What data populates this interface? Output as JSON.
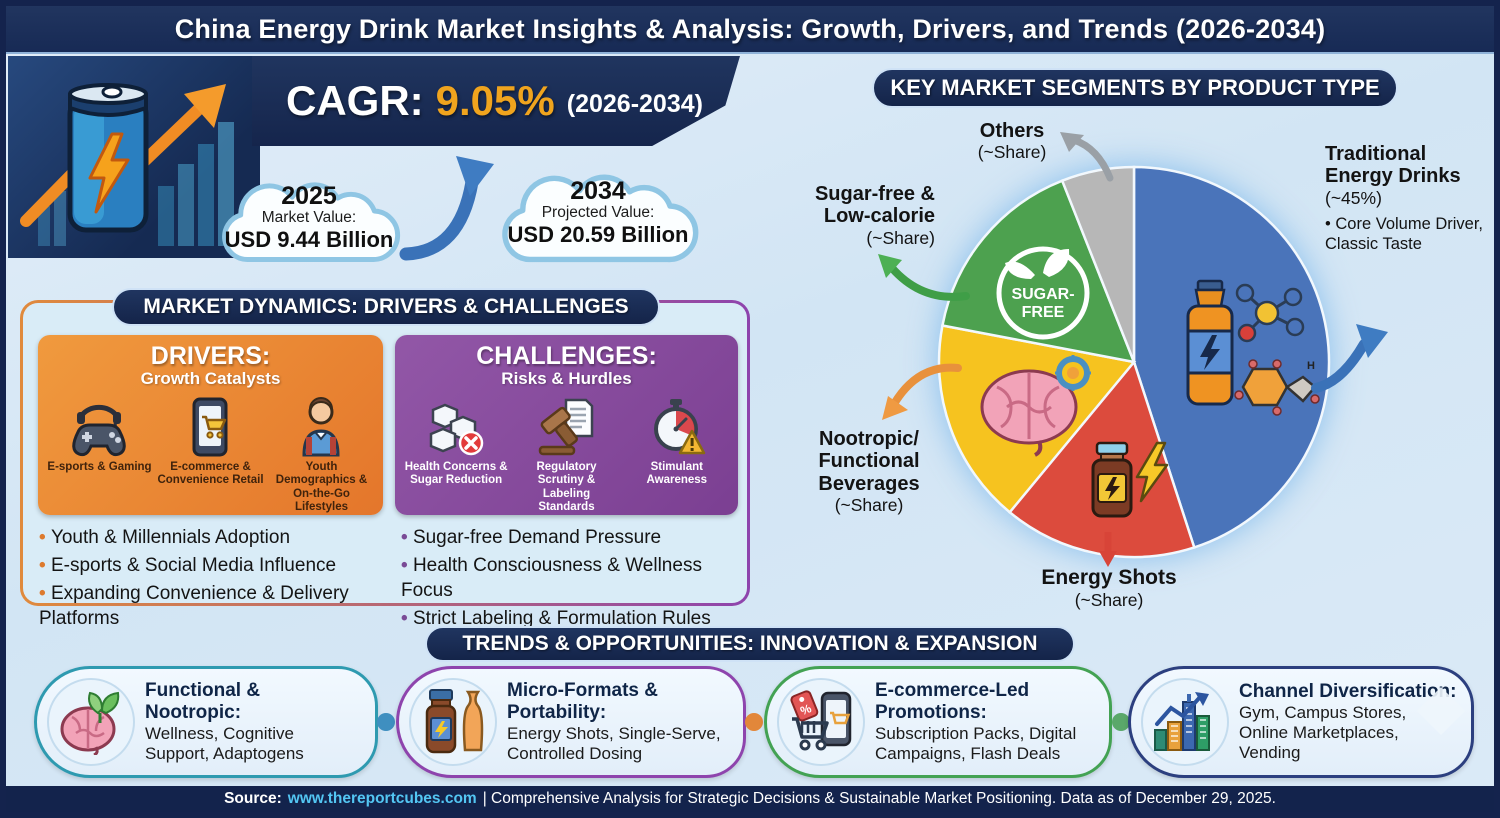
{
  "title": "China Energy Drink Market Insights & Analysis: Growth, Drivers, and Trends (2026-2034)",
  "hero": {
    "cagr_label": "CAGR:",
    "cagr_value": "9.05%",
    "cagr_period": "(2026-2034)",
    "clouds": [
      {
        "year": "2025",
        "label": "Market Value:",
        "value": "USD 9.44 Billion"
      },
      {
        "year": "2034",
        "label": "Projected Value:",
        "value": "USD 20.59 Billion"
      }
    ]
  },
  "market_dynamics": {
    "header": "MARKET DYNAMICS: DRIVERS & CHALLENGES",
    "drivers": {
      "title": "DRIVERS:",
      "subtitle": "Growth Catalysts",
      "items": [
        {
          "icon": "gamepad-headset-icon",
          "label": "E-sports & Gaming"
        },
        {
          "icon": "phone-cart-icon",
          "label": "E-commerce & Convenience Retail"
        },
        {
          "icon": "youth-backpack-icon",
          "label": "Youth Demographics & On-the-Go Lifestyles"
        }
      ],
      "bullets": [
        "Youth & Millennials Adoption",
        "E-sports & Social Media Influence",
        "Expanding Convenience & Delivery Platforms"
      ]
    },
    "challenges": {
      "title": "CHALLENGES:",
      "subtitle": "Risks & Hurdles",
      "items": [
        {
          "icon": "sugar-cubes-icon",
          "label": "Health Concerns & Sugar Reduction"
        },
        {
          "icon": "gavel-document-icon",
          "label": "Regulatory Scrutiny & Labeling Standards"
        },
        {
          "icon": "stopwatch-warning-icon",
          "label": "Stimulant Awareness"
        }
      ],
      "bullets": [
        "Sugar-free Demand Pressure",
        "Health Consciousness & Wellness Focus",
        "Strict Labeling & Formulation Rules"
      ]
    }
  },
  "segments": {
    "header": "KEY MARKET SEGMENTS BY PRODUCT TYPE",
    "badge": {
      "line1": "SUGAR-",
      "line2": "FREE"
    },
    "labels": {
      "others": {
        "name": "Others",
        "share": "(~Share)"
      },
      "sugar_free": {
        "line1": "Sugar-free &",
        "line2": "Low-calorie",
        "share": "(~Share)"
      },
      "nootropic": {
        "line1": "Nootropic/",
        "line2": "Functional",
        "line3": "Beverages",
        "share": "(~Share)"
      },
      "energy_shots": {
        "name": "Energy Shots",
        "share": "(~Share)"
      },
      "traditional": {
        "line1": "Traditional",
        "line2": "Energy Drinks",
        "share": "(~45%)",
        "bullet": "Core Volume Driver, Classic Taste"
      }
    }
  },
  "chart_data": {
    "type": "pie",
    "title": "KEY MARKET SEGMENTS BY PRODUCT TYPE",
    "labels": [
      "Traditional Energy Drinks",
      "Energy Shots",
      "Nootropic/Functional Beverages",
      "Sugar-free & Low-calorie",
      "Others"
    ],
    "values": [
      45,
      16,
      17,
      16,
      6
    ],
    "value_labels": [
      "~45%",
      "~Share",
      "~Share",
      "~Share",
      "~Share"
    ],
    "colors": [
      "#4a74ba",
      "#dc4b3d",
      "#f6c31f",
      "#4da14f",
      "#b7b7b7"
    ],
    "start_angle_deg": 0,
    "direction": "clockwise",
    "legend_position": "callout-labels-around-pie"
  },
  "trends": {
    "header": "TRENDS & OPPORTUNITIES: INNOVATION & EXPANSION",
    "items": [
      {
        "icon": "brain-leaf-icon",
        "accent": "#2e9ab0",
        "title": "Functional & Nootropic:",
        "text": "Wellness, Cognitive Support, Adaptogens"
      },
      {
        "icon": "shot-bottle-icon",
        "accent": "#8e44ad",
        "title": "Micro-Formats & Portability:",
        "text": "Energy Shots, Single-Serve, Controlled Dosing"
      },
      {
        "icon": "cart-promo-icon",
        "accent": "#43a253",
        "title": "E-commerce-Led Promotions:",
        "text": "Subscription Packs, Digital Campaigns, Flash Deals"
      },
      {
        "icon": "buildings-growth-icon",
        "accent": "#2c3f7f",
        "title": "Channel Diversification:",
        "text": "Gym, Campus Stores, Online Marketplaces, Vending"
      }
    ]
  },
  "footer": {
    "source_label": "Source:",
    "source_url": "www.thereportcubes.com",
    "text": "| Comprehensive Analysis for Strategic Decisions & Sustainable Market Positioning. Data as of December 29, 2025."
  },
  "colors": {
    "frame_navy": "#14234d",
    "banner_navy": "#18284f",
    "background_light_blue": "#d7e8f5",
    "cagr_accent": "#f0a41e",
    "drivers_orange": "#ec8a34",
    "challenges_purple": "#84489c",
    "link_cyan": "#53c6f3"
  }
}
